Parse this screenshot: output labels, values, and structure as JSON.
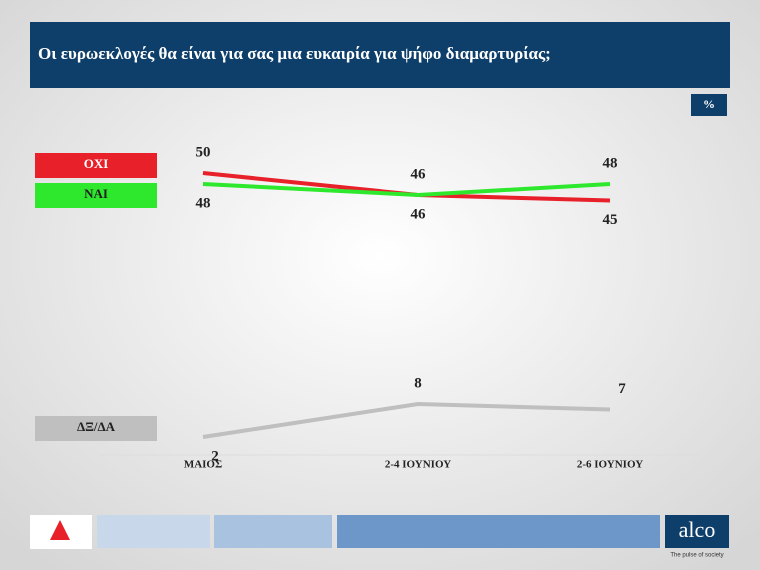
{
  "header": {
    "title": "Οι ευρωεκλογές θα είναι για σας μια ευκαιρία για ψήφο διαμαρτυρίας;",
    "unit": "%"
  },
  "chart_data": {
    "type": "line",
    "categories": [
      "ΜΑΙΟΣ",
      "2-4 ΙΟΥΝΙΟΥ",
      "2-6 ΙΟΥΝΙΟΥ"
    ],
    "series": [
      {
        "name": "ΟΧΙ",
        "color": "#e8202a",
        "values": [
          50,
          46,
          45
        ]
      },
      {
        "name": "ΝΑΙ",
        "color": "#2ee82e",
        "values": [
          48,
          46,
          48
        ]
      },
      {
        "name": "ΔΞ/ΔΑ",
        "color": "#bfbfbf",
        "values": [
          2,
          8,
          7
        ]
      }
    ]
  },
  "footer": {
    "brand": "alco",
    "tagline": "The pulse of society"
  }
}
